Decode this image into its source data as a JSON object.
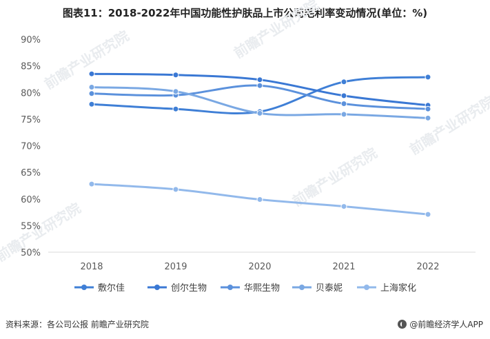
{
  "title": "图表11：2018-2022年中国功能性护肤品上市公司毛利率变动情况(单位：%)",
  "source": "资料来源：各公司公报 前瞻产业研究院",
  "brand": "@前瞻经济学人APP",
  "watermark": "前瞻产业研究院",
  "chart_data": {
    "type": "line",
    "title": "图表11：2018-2022年中国功能性护肤品上市公司毛利率变动情况(单位：%)",
    "categories": [
      "2018",
      "2019",
      "2020",
      "2021",
      "2022"
    ],
    "y_ticks": [
      "50%",
      "55%",
      "60%",
      "65%",
      "70%",
      "75%",
      "80%",
      "85%",
      "90%"
    ],
    "ylim": [
      50,
      90
    ],
    "grid": false,
    "legend_position": "bottom",
    "series": [
      {
        "name": "敷尔佳",
        "color": "#3f7fd6",
        "values": [
          77.8,
          76.9,
          76.4,
          82.0,
          82.9
        ]
      },
      {
        "name": "创尔生物",
        "color": "#3a78d4",
        "values": [
          83.5,
          83.3,
          82.4,
          79.4,
          77.6
        ]
      },
      {
        "name": "华熙生物",
        "color": "#5b91dc",
        "values": [
          79.8,
          79.5,
          81.3,
          77.9,
          76.9
        ]
      },
      {
        "name": "贝泰妮",
        "color": "#7aa8e3",
        "values": [
          81.0,
          80.2,
          76.1,
          75.9,
          75.2
        ]
      },
      {
        "name": "上海家化",
        "color": "#92b9eb",
        "values": [
          62.8,
          61.8,
          59.9,
          58.6,
          57.1
        ]
      }
    ]
  }
}
